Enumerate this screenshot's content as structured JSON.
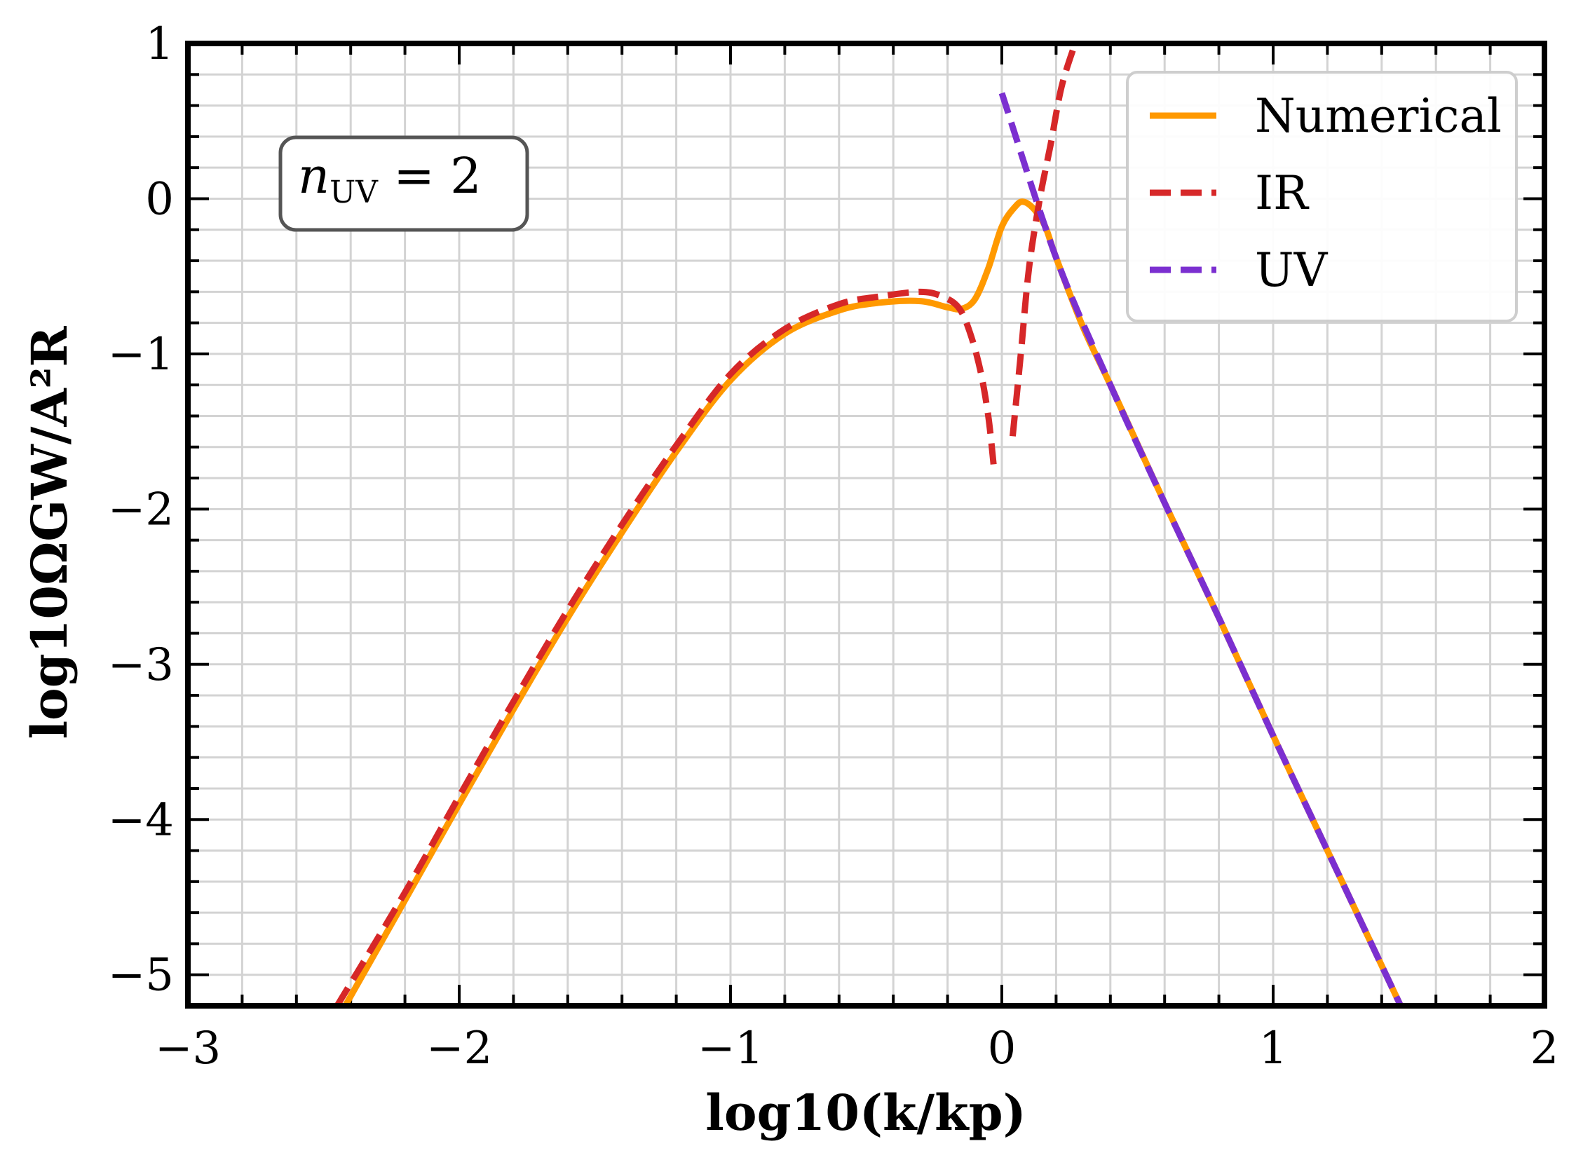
{
  "chart_data": {
    "type": "line",
    "title": "",
    "xlabel": "log10(k/kp)",
    "ylabel": "log10ΩGW/A²R",
    "xlim": [
      -3,
      2
    ],
    "ylim": [
      -5.2,
      1
    ],
    "grid": true,
    "x_ticks": [
      -3,
      -2,
      -1,
      0,
      1,
      2
    ],
    "x_tick_labels": [
      "−3",
      "−2",
      "−1",
      "0",
      "1",
      "2"
    ],
    "y_ticks": [
      1,
      0,
      -1,
      -2,
      -3,
      -4,
      -5
    ],
    "y_tick_labels": [
      "1",
      "0",
      "−1",
      "−2",
      "−3",
      "−4",
      "−5"
    ],
    "legend": {
      "position": "top-right",
      "entries": [
        "Numerical",
        "IR",
        "UV"
      ]
    },
    "annotation": {
      "main": "n",
      "subscript": "UV",
      "rest": " = 2"
    },
    "series": [
      {
        "name": "Numerical",
        "color": "#ff9900",
        "style": "solid",
        "x": [
          -2.42,
          -2.2,
          -2.0,
          -1.8,
          -1.6,
          -1.4,
          -1.2,
          -1.0,
          -0.8,
          -0.6,
          -0.45,
          -0.3,
          -0.2,
          -0.15,
          -0.1,
          -0.05,
          0.0,
          0.05,
          0.08,
          0.12,
          0.16,
          0.2,
          0.3,
          0.4,
          0.6,
          0.8,
          1.0,
          1.2,
          1.47
        ],
        "y": [
          -5.2,
          -4.52,
          -3.9,
          -3.29,
          -2.7,
          -2.15,
          -1.63,
          -1.17,
          -0.87,
          -0.72,
          -0.67,
          -0.66,
          -0.7,
          -0.71,
          -0.65,
          -0.45,
          -0.18,
          -0.05,
          -0.02,
          -0.07,
          -0.18,
          -0.38,
          -0.83,
          -1.2,
          -1.96,
          -2.7,
          -3.46,
          -4.2,
          -5.2
        ]
      },
      {
        "name": "IR",
        "color": "#d62728",
        "style": "dashed",
        "segments": [
          {
            "x": [
              -2.45,
              -2.2,
              -2.0,
              -1.8,
              -1.6,
              -1.4,
              -1.2,
              -1.0,
              -0.8,
              -0.6,
              -0.45,
              -0.3,
              -0.22,
              -0.16,
              -0.12,
              -0.08,
              -0.05,
              -0.03
            ],
            "y": [
              -5.2,
              -4.47,
              -3.85,
              -3.24,
              -2.65,
              -2.1,
              -1.59,
              -1.13,
              -0.84,
              -0.68,
              -0.63,
              -0.6,
              -0.63,
              -0.7,
              -0.85,
              -1.1,
              -1.4,
              -1.72
            ]
          },
          {
            "x": [
              0.04,
              0.07,
              0.1,
              0.14,
              0.18,
              0.22,
              0.27
            ],
            "y": [
              -1.53,
              -1.0,
              -0.45,
              0.0,
              0.35,
              0.72,
              1.0
            ]
          }
        ]
      },
      {
        "name": "UV",
        "color": "#7b2fd0",
        "style": "dashed",
        "x": [
          0.0,
          0.2,
          0.4,
          0.6,
          0.8,
          1.0,
          1.2,
          1.47
        ],
        "y": [
          0.68,
          -0.38,
          -1.2,
          -1.96,
          -2.7,
          -3.46,
          -4.2,
          -5.2
        ]
      }
    ]
  }
}
